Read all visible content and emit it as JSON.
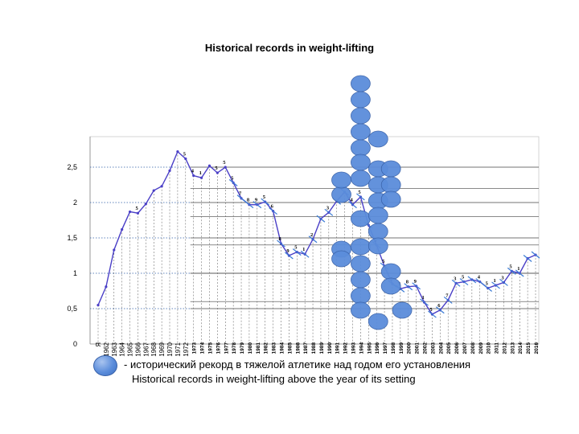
{
  "chart_data": {
    "type": "line",
    "title": "Historical records in weight-lifting",
    "xlabel": "",
    "ylabel": "",
    "ylim": [
      0,
      2.75
    ],
    "yticks": [
      "0",
      "0,5",
      "1",
      "1,5",
      "2",
      "2,5"
    ],
    "ytick_values": [
      0,
      0.5,
      1,
      1.5,
      2,
      2.5
    ],
    "categories": [
      "Я",
      "1962",
      "1963",
      "1964",
      "1965",
      "1966",
      "1967",
      "1968",
      "1969",
      "1970",
      "1971",
      "1972",
      "1973",
      "1974",
      "1975",
      "1976",
      "1977",
      "1978",
      "1979",
      "1980",
      "1981",
      "1982",
      "1983",
      "1984",
      "1985",
      "1986",
      "1987",
      "1988",
      "1989",
      "1990",
      "1991",
      "1992",
      "1993",
      "1994",
      "1995",
      "1996",
      "1997",
      "1998",
      "1999",
      "2000",
      "2001",
      "2002",
      "2003",
      "2004",
      "2005",
      "2006",
      "2007",
      "2008",
      "2009",
      "2010",
      "2011",
      "2012",
      "2013",
      "2014",
      "2015",
      "2016"
    ],
    "series": [
      {
        "name": "",
        "color": "#4a3fc7",
        "values": [
          0.55,
          0.81,
          1.33,
          1.62,
          1.87,
          1.85,
          1.98,
          2.17,
          2.23,
          2.45,
          2.72,
          2.62,
          2.38,
          2.35,
          2.52,
          2.42,
          2.5,
          2.28,
          2.06,
          1.97,
          1.97,
          2.01,
          1.88,
          1.42,
          1.25,
          1.3,
          1.27,
          1.48,
          1.77,
          1.86,
          2.02,
          2.15,
          1.97,
          2.08,
          1.68,
          1.4,
          1.1,
          0.85,
          0.78,
          0.81,
          0.82,
          0.59,
          0.42,
          0.48,
          0.62,
          0.86,
          0.88,
          0.91,
          0.88,
          0.79,
          0.83,
          0.87,
          1.03,
          1.0,
          1.21,
          1.26
        ]
      }
    ],
    "point_labels": [
      {
        "x": "1966",
        "text": "5"
      },
      {
        "x": "1972",
        "text": "5"
      },
      {
        "x": "1973",
        "text": "4"
      },
      {
        "x": "1974",
        "text": "1"
      },
      {
        "x": "1976",
        "text": "5"
      },
      {
        "x": "1977",
        "text": "5"
      },
      {
        "x": "1978",
        "text": "5"
      },
      {
        "x": "1979",
        "text": "7"
      },
      {
        "x": "1980",
        "text": "8"
      },
      {
        "x": "1981",
        "text": "9"
      },
      {
        "x": "1982",
        "text": "5"
      },
      {
        "x": "1983",
        "text": "6"
      },
      {
        "x": "1984",
        "text": "8"
      },
      {
        "x": "1985",
        "text": "9"
      },
      {
        "x": "1986",
        "text": "5"
      },
      {
        "x": "1987",
        "text": "1"
      },
      {
        "x": "1988",
        "text": "2"
      },
      {
        "x": "1990",
        "text": "3"
      },
      {
        "x": "1993",
        "text": "4"
      },
      {
        "x": "1994",
        "text": "5"
      },
      {
        "x": "1996",
        "text": "5"
      },
      {
        "x": "1997",
        "text": "5"
      },
      {
        "x": "1998",
        "text": "6"
      },
      {
        "x": "1999",
        "text": "7"
      },
      {
        "x": "2000",
        "text": "8"
      },
      {
        "x": "2001",
        "text": "9"
      },
      {
        "x": "2002",
        "text": "1"
      },
      {
        "x": "2003",
        "text": "5"
      },
      {
        "x": "2004",
        "text": "6"
      },
      {
        "x": "2005",
        "text": "7"
      },
      {
        "x": "2006",
        "text": "3"
      },
      {
        "x": "2007",
        "text": "5"
      },
      {
        "x": "2009",
        "text": "4"
      },
      {
        "x": "2010",
        "text": "5"
      },
      {
        "x": "2011",
        "text": "1"
      },
      {
        "x": "2012",
        "text": "3"
      },
      {
        "x": "2013",
        "text": "5"
      },
      {
        "x": "2014",
        "text": "1"
      }
    ],
    "record_markers": [
      "1993",
      "1994",
      "1995",
      "1996",
      "1997"
    ],
    "grid": true,
    "legend": {
      "position": "bottom",
      "ru": "- исторический рекорд в тяжелой атлетике над годом его установления",
      "en": "Historical records in weight-lifting above the year of its setting"
    },
    "colors": {
      "line": "#4a3fc7",
      "marker": "#5b8ddb",
      "tick_marks": "#3a7bd5",
      "gridline": "#333333",
      "dotted": "#2f5fa8"
    }
  }
}
